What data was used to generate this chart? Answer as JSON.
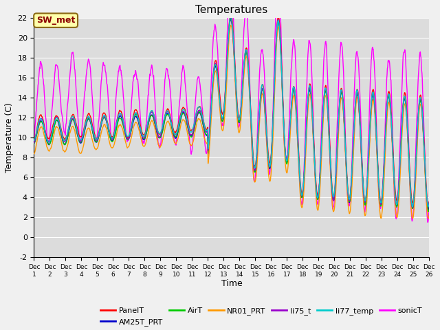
{
  "title": "Temperatures",
  "xlabel": "Time",
  "ylabel": "Temperature (C)",
  "ylim": [
    -2,
    22
  ],
  "xlim": [
    0,
    25
  ],
  "series_colors": {
    "PanelT": "#ff0000",
    "AM25T_PRT": "#0000cc",
    "AirT": "#00cc00",
    "NR01_PRT": "#ff9900",
    "li75_t": "#9900cc",
    "li77_temp": "#00cccc",
    "sonicT": "#ff00ff"
  },
  "annotation_text": "SW_met",
  "background_color": "#dcdcdc",
  "grid_color": "#ffffff",
  "title_fontsize": 11,
  "axis_fontsize": 9,
  "legend_fontsize": 8,
  "fig_width": 6.4,
  "fig_height": 4.8,
  "dpi": 100
}
